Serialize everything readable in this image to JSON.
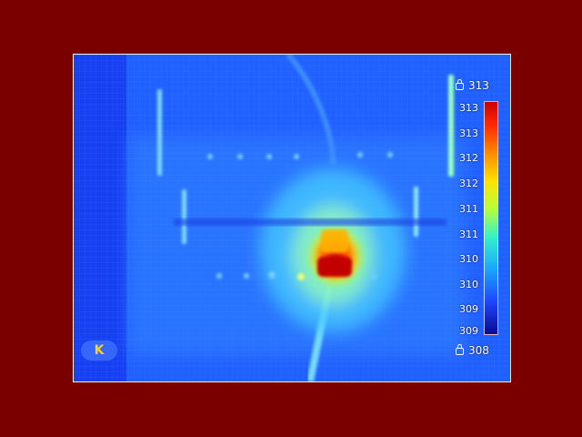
{
  "thermal": {
    "max_value": "313",
    "min_value": "308",
    "unit_label": "K",
    "scale_ticks": [
      "313",
      "313",
      "312",
      "312",
      "311",
      "311",
      "310",
      "310",
      "309",
      "309",
      "308"
    ]
  },
  "colors": {
    "background": "#7a0000",
    "frame_border": "#f4f4e8",
    "cold": "#1f55ff",
    "hot": "#d80000"
  },
  "icons": {
    "lock": "lock-icon"
  }
}
